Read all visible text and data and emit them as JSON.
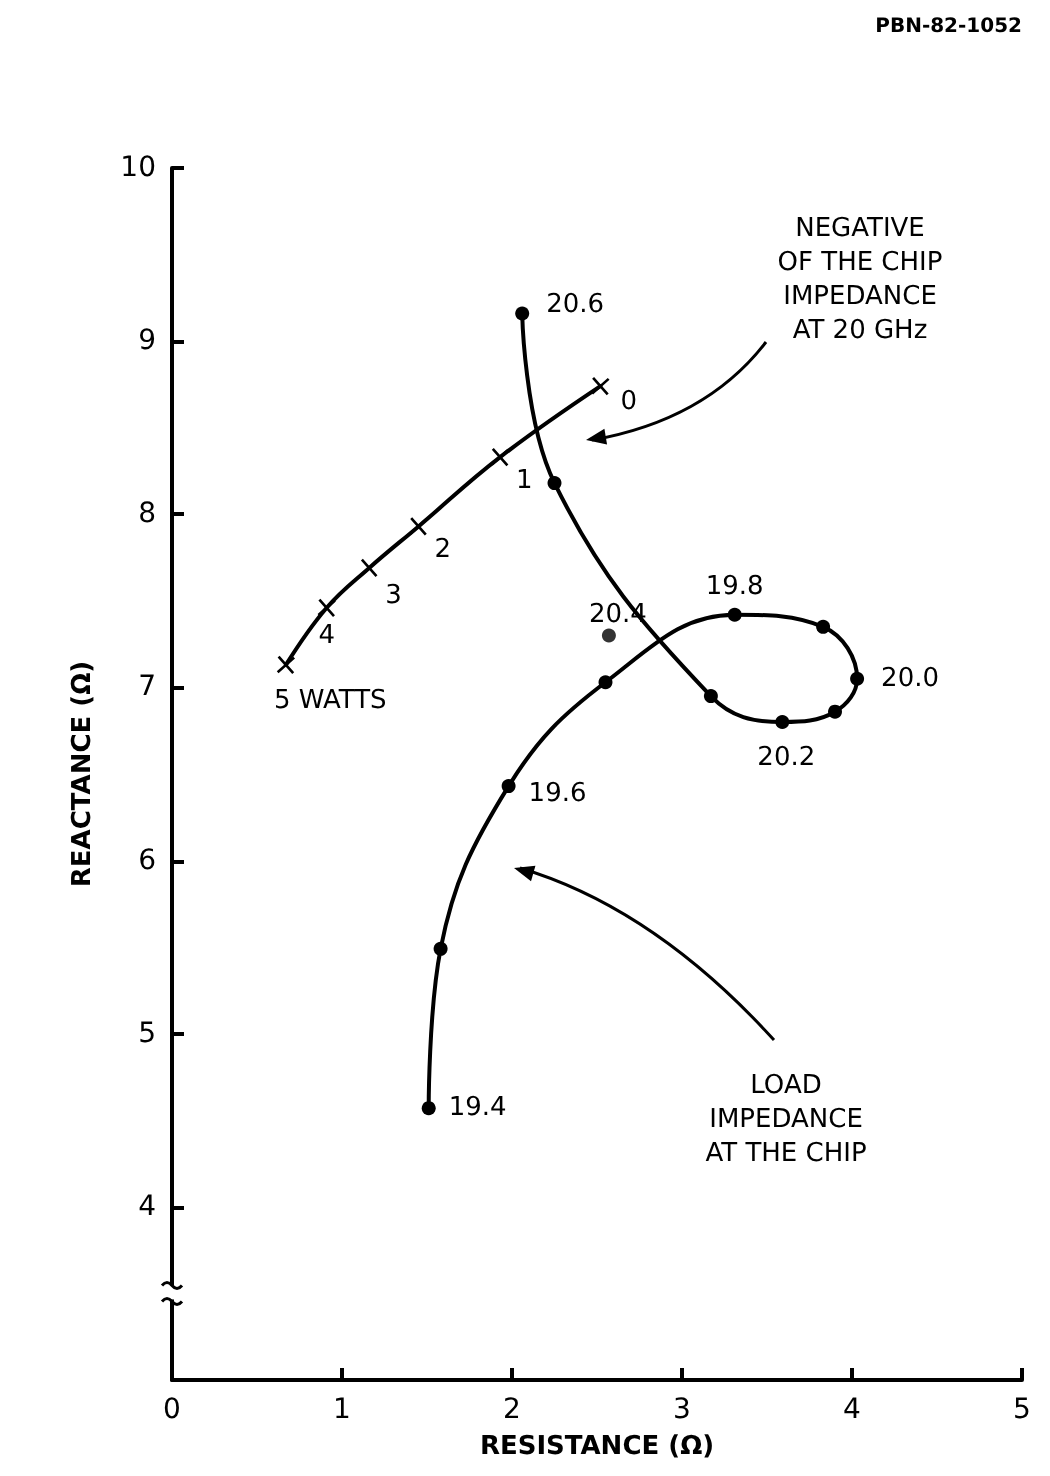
{
  "chart_data": {
    "type": "line",
    "xlabel": "RESISTANCE (Ω)",
    "ylabel": "REACTANCE (Ω)",
    "xlim": [
      0,
      5
    ],
    "xticks": [
      0,
      1,
      2,
      3,
      4,
      5
    ],
    "ylim": [
      3,
      10
    ],
    "yticks": [
      4,
      5,
      6,
      7,
      8,
      9,
      10
    ],
    "grid": false,
    "marker": "circle",
    "line_style": "solid",
    "series": [
      {
        "color": "#000000",
        "x": [
          1.51,
          1.58,
          1.98,
          2.55,
          3.31,
          3.83,
          4.03,
          3.9,
          3.59,
          3.17,
          2.25,
          2.06
        ],
        "values": [
          4.57,
          5.49,
          6.43,
          7.03,
          7.42,
          7.35,
          7.05,
          6.86,
          6.8,
          6.95,
          8.18,
          9.16
        ]
      },
      {
        "type": "scatter",
        "color": "#000000",
        "x": [
          2.57
        ],
        "values": [
          7.3
        ]
      },
      {
        "type": "line",
        "color": "#000000",
        "marker": "cross",
        "x": [
          2.52,
          1.93,
          1.45,
          1.16,
          0.91,
          0.67
        ],
        "values": [
          8.74,
          8.33,
          7.93,
          7.69,
          7.46,
          7.13
        ]
      }
    ],
    "annotations": [
      {
        "text": "19.4",
        "x": 1.51,
        "y": 4.57
      },
      {
        "text": "19.6",
        "x": 1.98,
        "y": 6.43
      },
      {
        "text": "19.8",
        "x": 3.31,
        "y": 7.42
      },
      {
        "text": "20.0",
        "x": 4.03,
        "y": 7.05
      },
      {
        "text": "20.2",
        "x": 3.59,
        "y": 6.8
      },
      {
        "text": "20.4",
        "x": 2.57,
        "y": 7.3
      },
      {
        "text": "20.6",
        "x": 2.06,
        "y": 9.16
      },
      {
        "text": "0",
        "x": 2.52,
        "y": 8.74
      },
      {
        "text": "1",
        "x": 1.93,
        "y": 8.33
      },
      {
        "text": "2",
        "x": 1.45,
        "y": 7.93
      },
      {
        "text": "3",
        "x": 1.16,
        "y": 7.69
      },
      {
        "text": "4",
        "x": 0.91,
        "y": 7.46
      },
      {
        "text": "5 WATTS",
        "x": 0.67,
        "y": 7.13
      },
      "NEGATIVE\nOF THE CHIP\nIMPEDANCE\nAT 20 GHz",
      "LOAD\nIMPEDANCE\nAT THE CHIP",
      "PBN-82-1052"
    ]
  }
}
